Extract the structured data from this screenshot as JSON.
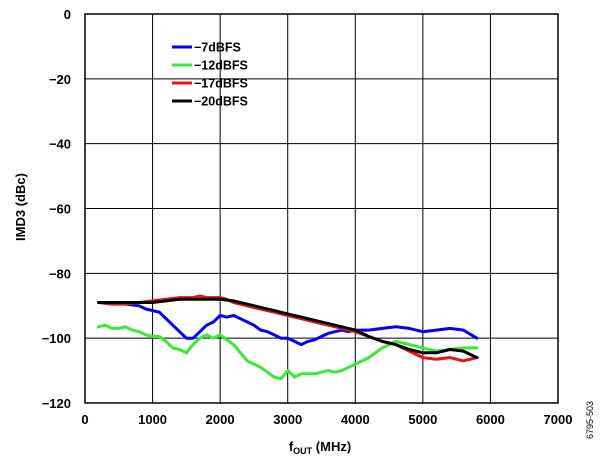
{
  "chart_data": {
    "type": "line",
    "title": "",
    "xlabel_main": "f",
    "xlabel_sub": "OUT",
    "xlabel_unit": " (MHz)",
    "ylabel": "IMD3 (dBc)",
    "xlim": [
      0,
      7000
    ],
    "ylim": [
      -120,
      0
    ],
    "xticks": [
      0,
      1000,
      2000,
      3000,
      4000,
      5000,
      6000,
      7000
    ],
    "yticks": [
      0,
      -20,
      -40,
      -60,
      -80,
      -100,
      -120
    ],
    "grid": true,
    "legend_position": "top-left",
    "figure_id": "6795-503",
    "series": [
      {
        "name": "−7dBFS",
        "color": "#0000ff",
        "x": [
          200,
          400,
          600,
          800,
          900,
          1000,
          1100,
          1200,
          1300,
          1400,
          1500,
          1600,
          1700,
          1800,
          1900,
          2000,
          2100,
          2200,
          2300,
          2400,
          2500,
          2600,
          2700,
          2800,
          2900,
          3000,
          3100,
          3200,
          3300,
          3400,
          3500,
          3600,
          3700,
          3800,
          3900,
          4000,
          4200,
          4400,
          4600,
          4800,
          5000,
          5200,
          5400,
          5600,
          5800
        ],
        "y": [
          -89,
          -89,
          -89.5,
          -90,
          -91,
          -91.5,
          -92,
          -94,
          -96,
          -98,
          -100,
          -100,
          -98,
          -96,
          -95,
          -93,
          -93.5,
          -93,
          -94,
          -95,
          -96,
          -97.5,
          -98,
          -99,
          -100,
          -100,
          -101,
          -102,
          -101,
          -100.5,
          -99.5,
          -98.5,
          -98,
          -97.5,
          -98,
          -97.5,
          -97.5,
          -97,
          -96.5,
          -97,
          -98,
          -97.5,
          -97,
          -97.5,
          -100
        ]
      },
      {
        "name": "−12dBFS",
        "color": "#33ee33",
        "x": [
          200,
          300,
          400,
          500,
          600,
          700,
          800,
          900,
          1000,
          1100,
          1200,
          1300,
          1400,
          1500,
          1600,
          1700,
          1800,
          1900,
          2000,
          2100,
          2200,
          2300,
          2400,
          2500,
          2600,
          2700,
          2800,
          2900,
          3000,
          3100,
          3200,
          3300,
          3400,
          3500,
          3600,
          3700,
          3800,
          3900,
          4000,
          4200,
          4400,
          4600,
          4800,
          5000,
          5200,
          5400,
          5600,
          5800
        ],
        "y": [
          -96.5,
          -96,
          -97,
          -97,
          -96.5,
          -97.5,
          -98,
          -99,
          -99.5,
          -99.5,
          -101,
          -103,
          -103.5,
          -104.5,
          -102,
          -100,
          -99,
          -100,
          -99,
          -100.5,
          -102,
          -104.5,
          -107,
          -108,
          -109,
          -110.5,
          -112,
          -112.5,
          -110,
          -112,
          -111,
          -111,
          -111,
          -110.5,
          -110,
          -110.5,
          -110,
          -109,
          -108,
          -106,
          -103,
          -101,
          -102,
          -103,
          -104,
          -103.5,
          -103,
          -103
        ]
      },
      {
        "name": "−17dBFS",
        "color": "#ee1111",
        "x": [
          200,
          400,
          600,
          800,
          1000,
          1200,
          1400,
          1600,
          1700,
          1800,
          2000,
          2100,
          2200,
          2400,
          2600,
          2800,
          3000,
          3200,
          3400,
          3600,
          3800,
          4000,
          4200,
          4400,
          4600,
          4800,
          5000,
          5200,
          5400,
          5600,
          5800
        ],
        "y": [
          -89,
          -89.5,
          -89.5,
          -89,
          -88.5,
          -88,
          -87.5,
          -87.5,
          -87,
          -87.5,
          -87.5,
          -88,
          -89,
          -90,
          -91,
          -92,
          -93,
          -94,
          -95,
          -96,
          -97,
          -98,
          -99.5,
          -101,
          -102,
          -104,
          -106,
          -106.5,
          -106,
          -107,
          -106
        ]
      },
      {
        "name": "−20dBFS",
        "color": "#000000",
        "x": [
          200,
          400,
          600,
          800,
          1000,
          1200,
          1400,
          1600,
          1800,
          2000,
          2200,
          2400,
          2600,
          2800,
          3000,
          3200,
          3400,
          3600,
          3800,
          4000,
          4200,
          4400,
          4600,
          4800,
          5000,
          5200,
          5400,
          5600,
          5800
        ],
        "y": [
          -89,
          -89,
          -89,
          -89,
          -89,
          -88.5,
          -88,
          -88,
          -88,
          -88,
          -88.5,
          -89.5,
          -90.5,
          -91.5,
          -92.5,
          -93.5,
          -94.5,
          -95.5,
          -96.5,
          -97.5,
          -99.5,
          -101,
          -102,
          -103.5,
          -104.5,
          -104.5,
          -103.5,
          -104,
          -106
        ]
      }
    ]
  }
}
